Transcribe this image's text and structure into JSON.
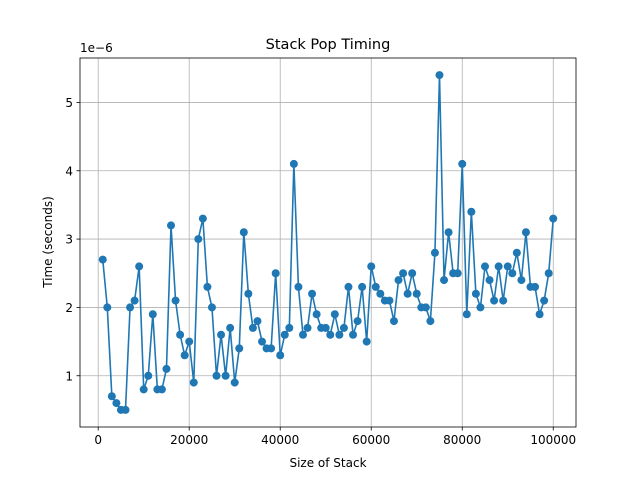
{
  "chart_data": {
    "type": "line",
    "title": "Stack Pop Timing",
    "xlabel": "Size of Stack",
    "ylabel": "Time (seconds)",
    "y_scale_label": "1e−6",
    "y_scale": 1e-06,
    "xlim": [
      -4000,
      105000
    ],
    "ylim": [
      0.25,
      5.65
    ],
    "x_ticks": [
      0,
      20000,
      40000,
      60000,
      80000,
      100000
    ],
    "x_tick_labels": [
      "0",
      "20000",
      "40000",
      "60000",
      "80000",
      "100000"
    ],
    "y_ticks": [
      1,
      2,
      3,
      4,
      5
    ],
    "y_tick_labels": [
      "1",
      "2",
      "3",
      "4",
      "5"
    ],
    "grid": true,
    "marker": "circle",
    "color": "#1f77b4",
    "series": [
      {
        "x": [
          1000,
          2000,
          3000,
          4000,
          5000,
          6000,
          7000,
          8000,
          9000,
          10000,
          11000,
          12000,
          13000,
          14000,
          15000,
          16000,
          17000,
          18000,
          19000,
          20000,
          21000,
          22000,
          23000,
          24000,
          25000,
          26000,
          27000,
          28000,
          29000,
          30000,
          31000,
          32000,
          33000,
          34000,
          35000,
          36000,
          37000,
          38000,
          39000,
          40000,
          41000,
          42000,
          43000,
          44000,
          45000,
          46000,
          47000,
          48000,
          49000,
          50000,
          51000,
          52000,
          53000,
          54000,
          55000,
          56000,
          57000,
          58000,
          59000,
          60000,
          61000,
          62000,
          63000,
          64000,
          65000,
          66000,
          67000,
          68000,
          69000,
          70000,
          71000,
          72000,
          73000,
          74000,
          75000,
          76000,
          77000,
          78000,
          79000,
          80000,
          81000,
          82000,
          83000,
          84000,
          85000,
          86000,
          87000,
          88000,
          89000,
          90000,
          91000,
          92000,
          93000,
          94000,
          95000,
          96000,
          97000,
          98000,
          99000,
          100000
        ],
        "values": [
          2.7,
          2.0,
          0.7,
          0.6,
          0.5,
          0.5,
          2.0,
          2.1,
          2.6,
          0.8,
          1.0,
          1.9,
          0.8,
          0.8,
          1.1,
          3.2,
          2.1,
          1.6,
          1.3,
          1.5,
          0.9,
          3.0,
          3.3,
          2.3,
          2.0,
          1.0,
          1.6,
          1.0,
          1.7,
          0.9,
          1.4,
          3.1,
          2.2,
          1.7,
          1.8,
          1.5,
          1.4,
          1.4,
          2.5,
          1.3,
          1.6,
          1.7,
          4.1,
          2.3,
          1.6,
          1.7,
          2.2,
          1.9,
          1.7,
          1.7,
          1.6,
          1.9,
          1.6,
          1.7,
          2.3,
          1.6,
          1.8,
          2.3,
          1.5,
          2.6,
          2.3,
          2.2,
          2.1,
          2.1,
          1.8,
          2.4,
          2.5,
          2.2,
          2.5,
          2.2,
          2.0,
          2.0,
          1.8,
          2.8,
          5.4,
          2.4,
          3.1,
          2.5,
          2.5,
          4.1,
          1.9,
          3.4,
          2.2,
          2.0,
          2.6,
          2.4,
          2.1,
          2.6,
          2.1,
          2.6,
          2.5,
          2.8,
          2.4,
          3.1,
          2.3,
          2.3,
          1.9,
          2.1,
          2.5,
          3.3
        ]
      }
    ]
  }
}
